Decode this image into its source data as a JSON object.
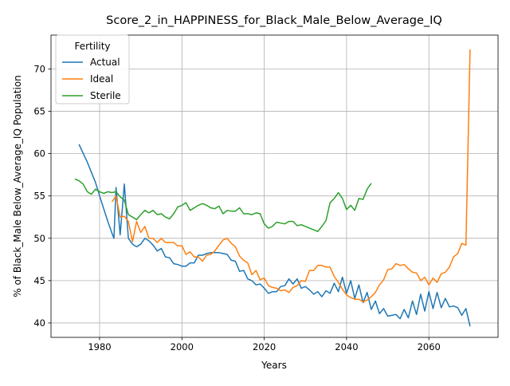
{
  "chart_data": {
    "type": "line",
    "title": "Score_2_in_HAPPINESS_for_Black_Male_Below_Average_IQ",
    "xlabel": "Years",
    "ylabel": "% of Black_Male Below_Average_IQ Population",
    "xlim": [
      1968.2,
      2076.8
    ],
    "ylim": [
      38.3,
      74.0
    ],
    "xticks": [
      1980,
      2000,
      2020,
      2040,
      2060
    ],
    "yticks": [
      40,
      45,
      50,
      55,
      60,
      65,
      70
    ],
    "grid": true,
    "legend": {
      "title": "Fertility",
      "placement": "top-left"
    },
    "series": [
      {
        "name": "Actual",
        "color": "#1f77b4",
        "points": [
          [
            1975,
            61.1
          ],
          [
            1977,
            59.0
          ],
          [
            1979,
            56.6
          ],
          [
            1980,
            55.0
          ],
          [
            1981,
            53.5
          ],
          [
            1982,
            52.0
          ],
          [
            1983,
            50.6
          ],
          [
            1983.5,
            50.0
          ],
          [
            1984,
            56.0
          ],
          [
            1985,
            50.4
          ],
          [
            1986,
            56.4
          ],
          [
            1987,
            50.0
          ],
          [
            1988,
            49.3
          ],
          [
            1989,
            49.0
          ],
          [
            1990,
            49.3
          ],
          [
            1991,
            50.0
          ],
          [
            1992,
            49.7
          ],
          [
            1993,
            49.2
          ],
          [
            1994,
            48.5
          ],
          [
            1995,
            48.8
          ],
          [
            1996,
            47.8
          ],
          [
            1997,
            47.7
          ],
          [
            1998,
            47.0
          ],
          [
            1999,
            46.9
          ],
          [
            2000,
            46.7
          ],
          [
            2001,
            46.7
          ],
          [
            2002,
            47.1
          ],
          [
            2003,
            47.1
          ],
          [
            2004,
            48.0
          ],
          [
            2005,
            48.0
          ],
          [
            2006,
            48.2
          ],
          [
            2007,
            48.3
          ],
          [
            2008,
            48.3
          ],
          [
            2009,
            48.3
          ],
          [
            2010,
            48.2
          ],
          [
            2011,
            48.1
          ],
          [
            2012,
            47.4
          ],
          [
            2013,
            47.3
          ],
          [
            2014,
            46.1
          ],
          [
            2015,
            46.2
          ],
          [
            2016,
            45.2
          ],
          [
            2017,
            45.0
          ],
          [
            2018,
            44.5
          ],
          [
            2019,
            44.6
          ],
          [
            2020,
            44.1
          ],
          [
            2021,
            43.5
          ],
          [
            2022,
            43.7
          ],
          [
            2023,
            43.7
          ],
          [
            2024,
            44.3
          ],
          [
            2025,
            44.4
          ],
          [
            2026,
            45.2
          ],
          [
            2027,
            44.6
          ],
          [
            2028,
            45.2
          ],
          [
            2029,
            44.1
          ],
          [
            2030,
            44.3
          ],
          [
            2031,
            43.9
          ],
          [
            2032,
            43.4
          ],
          [
            2033,
            43.7
          ],
          [
            2034,
            43.1
          ],
          [
            2035,
            43.8
          ],
          [
            2036,
            43.5
          ],
          [
            2037,
            44.7
          ],
          [
            2038,
            43.7
          ],
          [
            2039,
            45.4
          ],
          [
            2040,
            43.5
          ],
          [
            2041,
            45.0
          ],
          [
            2042,
            42.9
          ],
          [
            2043,
            44.5
          ],
          [
            2044,
            42.4
          ],
          [
            2045,
            43.6
          ],
          [
            2046,
            41.6
          ],
          [
            2047,
            42.6
          ],
          [
            2048,
            41.1
          ],
          [
            2049,
            41.7
          ],
          [
            2050,
            40.8
          ],
          [
            2051,
            40.9
          ],
          [
            2052,
            41.0
          ],
          [
            2053,
            40.5
          ],
          [
            2054,
            41.6
          ],
          [
            2055,
            40.6
          ],
          [
            2056,
            42.6
          ],
          [
            2057,
            41.0
          ],
          [
            2058,
            43.4
          ],
          [
            2059,
            41.4
          ],
          [
            2060,
            43.7
          ],
          [
            2061,
            41.7
          ],
          [
            2062,
            43.6
          ],
          [
            2063,
            41.8
          ],
          [
            2064,
            42.9
          ],
          [
            2065,
            41.9
          ],
          [
            2066,
            42.0
          ],
          [
            2067,
            41.8
          ],
          [
            2068,
            40.9
          ],
          [
            2069,
            41.7
          ],
          [
            2070,
            39.6
          ]
        ]
      },
      {
        "name": "Ideal",
        "color": "#ff7f0e",
        "points": [
          [
            1983,
            54.3
          ],
          [
            1984,
            55.0
          ],
          [
            1985,
            52.5
          ],
          [
            1986,
            52.6
          ],
          [
            1987,
            52.0
          ],
          [
            1988,
            49.6
          ],
          [
            1989,
            52.0
          ],
          [
            1990,
            50.7
          ],
          [
            1991,
            51.4
          ],
          [
            1992,
            50.0
          ],
          [
            1993,
            50.0
          ],
          [
            1994,
            49.5
          ],
          [
            1995,
            50.0
          ],
          [
            1996,
            49.5
          ],
          [
            1997,
            49.5
          ],
          [
            1998,
            49.5
          ],
          [
            1999,
            49.1
          ],
          [
            2000,
            49.1
          ],
          [
            2001,
            48.1
          ],
          [
            2002,
            48.4
          ],
          [
            2003,
            47.8
          ],
          [
            2004,
            47.8
          ],
          [
            2005,
            47.3
          ],
          [
            2006,
            48.0
          ],
          [
            2007,
            48.1
          ],
          [
            2008,
            48.5
          ],
          [
            2009,
            49.2
          ],
          [
            2010,
            49.8
          ],
          [
            2011,
            50.0
          ],
          [
            2012,
            49.4
          ],
          [
            2013,
            49.0
          ],
          [
            2014,
            47.9
          ],
          [
            2015,
            47.4
          ],
          [
            2016,
            47.1
          ],
          [
            2017,
            45.7
          ],
          [
            2018,
            46.2
          ],
          [
            2019,
            45.1
          ],
          [
            2020,
            45.3
          ],
          [
            2021,
            44.4
          ],
          [
            2022,
            44.2
          ],
          [
            2023,
            44.1
          ],
          [
            2024,
            43.8
          ],
          [
            2025,
            43.9
          ],
          [
            2026,
            43.6
          ],
          [
            2027,
            44.2
          ],
          [
            2028,
            44.4
          ],
          [
            2029,
            45.0
          ],
          [
            2030,
            44.9
          ],
          [
            2031,
            46.2
          ],
          [
            2032,
            46.2
          ],
          [
            2033,
            46.8
          ],
          [
            2034,
            46.8
          ],
          [
            2035,
            46.6
          ],
          [
            2036,
            46.6
          ],
          [
            2037,
            45.5
          ],
          [
            2038,
            44.8
          ],
          [
            2039,
            44.0
          ],
          [
            2040,
            43.3
          ],
          [
            2041,
            43.0
          ],
          [
            2042,
            42.8
          ],
          [
            2043,
            42.8
          ],
          [
            2044,
            42.5
          ],
          [
            2045,
            42.7
          ],
          [
            2046,
            43.1
          ],
          [
            2047,
            43.6
          ],
          [
            2048,
            44.5
          ],
          [
            2049,
            45.1
          ],
          [
            2050,
            46.3
          ],
          [
            2051,
            46.4
          ],
          [
            2052,
            47.0
          ],
          [
            2053,
            46.8
          ],
          [
            2054,
            46.9
          ],
          [
            2055,
            46.4
          ],
          [
            2056,
            46.0
          ],
          [
            2057,
            45.9
          ],
          [
            2058,
            45.0
          ],
          [
            2059,
            45.4
          ],
          [
            2060,
            44.5
          ],
          [
            2061,
            45.3
          ],
          [
            2062,
            44.8
          ],
          [
            2063,
            45.8
          ],
          [
            2064,
            46.0
          ],
          [
            2065,
            46.6
          ],
          [
            2066,
            47.8
          ],
          [
            2067,
            48.2
          ],
          [
            2068,
            49.4
          ],
          [
            2069,
            49.2
          ],
          [
            2070,
            72.3
          ]
        ]
      },
      {
        "name": "Sterile",
        "color": "#2ca02c",
        "points": [
          [
            1974,
            57.0
          ],
          [
            1975,
            56.8
          ],
          [
            1976,
            56.4
          ],
          [
            1977,
            55.5
          ],
          [
            1978,
            55.2
          ],
          [
            1979,
            55.8
          ],
          [
            1980,
            55.5
          ],
          [
            1981,
            55.3
          ],
          [
            1982,
            55.5
          ],
          [
            1983,
            55.4
          ],
          [
            1984,
            55.5
          ],
          [
            1985,
            54.9
          ],
          [
            1986,
            54.5
          ],
          [
            1987,
            52.8
          ],
          [
            1988,
            52.5
          ],
          [
            1989,
            52.2
          ],
          [
            1990,
            52.8
          ],
          [
            1991,
            53.3
          ],
          [
            1992,
            53.0
          ],
          [
            1993,
            53.3
          ],
          [
            1994,
            52.8
          ],
          [
            1995,
            52.9
          ],
          [
            1996,
            52.5
          ],
          [
            1997,
            52.3
          ],
          [
            1998,
            52.9
          ],
          [
            1999,
            53.7
          ],
          [
            2000,
            53.9
          ],
          [
            2001,
            54.2
          ],
          [
            2002,
            53.3
          ],
          [
            2003,
            53.6
          ],
          [
            2004,
            53.9
          ],
          [
            2005,
            54.1
          ],
          [
            2006,
            53.9
          ],
          [
            2007,
            53.6
          ],
          [
            2008,
            53.5
          ],
          [
            2009,
            53.8
          ],
          [
            2010,
            52.9
          ],
          [
            2011,
            53.3
          ],
          [
            2012,
            53.2
          ],
          [
            2013,
            53.2
          ],
          [
            2014,
            53.6
          ],
          [
            2015,
            52.9
          ],
          [
            2016,
            52.9
          ],
          [
            2017,
            52.8
          ],
          [
            2018,
            53.0
          ],
          [
            2019,
            52.9
          ],
          [
            2020,
            51.7
          ],
          [
            2021,
            51.2
          ],
          [
            2022,
            51.4
          ],
          [
            2023,
            51.9
          ],
          [
            2024,
            51.8
          ],
          [
            2025,
            51.7
          ],
          [
            2026,
            52.0
          ],
          [
            2027,
            52.0
          ],
          [
            2028,
            51.5
          ],
          [
            2029,
            51.6
          ],
          [
            2030,
            51.4
          ],
          [
            2031,
            51.2
          ],
          [
            2032,
            51.0
          ],
          [
            2033,
            50.8
          ],
          [
            2034,
            51.4
          ],
          [
            2035,
            52.1
          ],
          [
            2036,
            54.2
          ],
          [
            2037,
            54.7
          ],
          [
            2038,
            55.4
          ],
          [
            2039,
            54.7
          ],
          [
            2040,
            53.4
          ],
          [
            2041,
            53.9
          ],
          [
            2042,
            53.3
          ],
          [
            2043,
            54.7
          ],
          [
            2044,
            54.6
          ],
          [
            2045,
            55.8
          ],
          [
            2046,
            56.5
          ]
        ]
      }
    ]
  }
}
